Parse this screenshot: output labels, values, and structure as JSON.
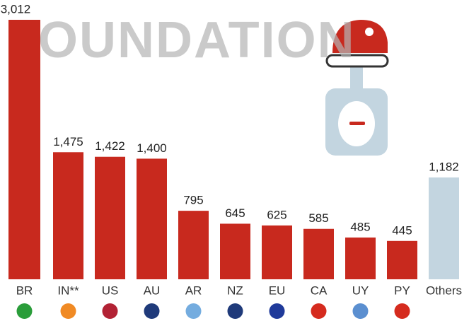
{
  "chart_data": {
    "type": "bar",
    "watermark": "FOUNDATION",
    "categories": [
      "BR",
      "IN**",
      "US",
      "AU",
      "AR",
      "NZ",
      "EU",
      "CA",
      "UY",
      "PY",
      "Others"
    ],
    "values": [
      3012,
      1475,
      1422,
      1400,
      795,
      645,
      625,
      585,
      485,
      445,
      1182
    ],
    "value_labels": [
      "3,012",
      "1,475",
      "1,422",
      "1,400",
      "795",
      "645",
      "625",
      "585",
      "485",
      "445",
      "1,182"
    ],
    "colors": [
      "#c8291e",
      "#c8291e",
      "#c8291e",
      "#c8291e",
      "#c8291e",
      "#c8291e",
      "#c8291e",
      "#c8291e",
      "#c8291e",
      "#c8291e",
      "#c3d5e0"
    ]
  }
}
